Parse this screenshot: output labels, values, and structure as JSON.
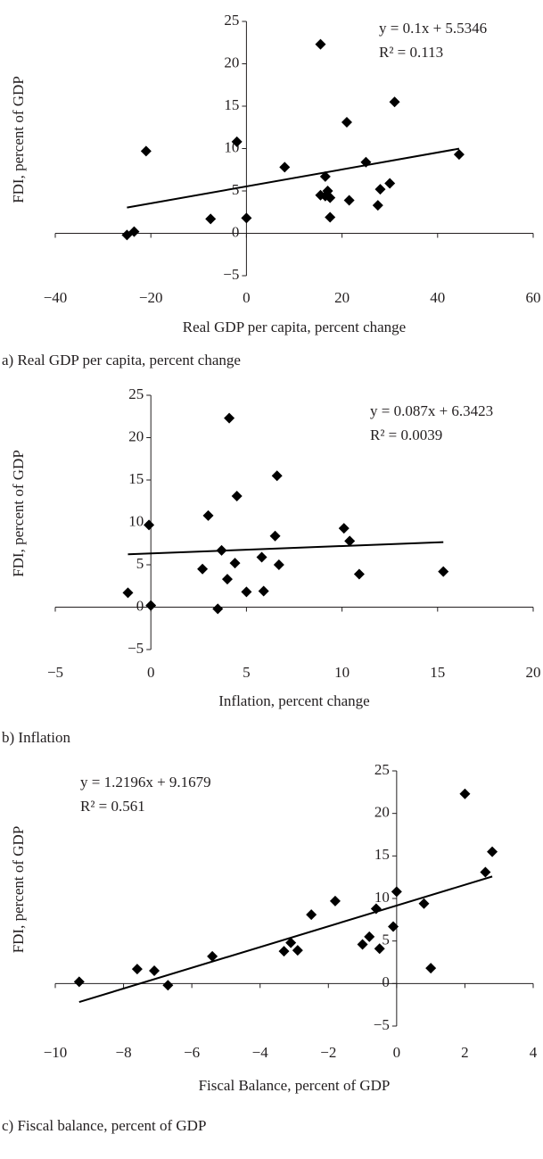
{
  "chart_data": [
    {
      "type": "scatter",
      "color": "#000000",
      "x_label": "Real GDP per capita, percent change",
      "y_label": "FDI, percent of GDP",
      "x": [
        -25,
        -23.5,
        -21,
        -7.5,
        -2,
        0,
        8,
        15.5,
        15.5,
        16.5,
        16.5,
        17,
        17.5,
        17.5,
        21,
        21.5,
        25,
        27.5,
        28,
        30,
        31,
        44.5
      ],
      "y": [
        -0.2,
        0.2,
        9.7,
        1.7,
        10.8,
        1.8,
        7.8,
        22.3,
        4.5,
        6.7,
        4.4,
        5,
        4.2,
        1.9,
        13.1,
        3.9,
        8.4,
        3.3,
        5.2,
        5.9,
        15.5,
        9.3
      ],
      "xlim": [
        -40,
        60
      ],
      "ylim": [
        -5,
        25
      ],
      "xticks": [
        {
          "value": -40,
          "label": "−40"
        },
        {
          "value": -20,
          "label": "−20"
        },
        0,
        20,
        40,
        60
      ],
      "yticks": [
        {
          "value": -5,
          "label": "−5"
        },
        0,
        5,
        10,
        15,
        20,
        25
      ],
      "trendline": {
        "slope": 0.1,
        "intercept": 5.5346
      },
      "annotations": [
        "y = 0.1x + 5.5346",
        "R² = 0.113"
      ],
      "caption": "a) Real GDP per capita, percent change"
    },
    {
      "type": "scatter",
      "color": "#000000",
      "x_label": "Inflation, percent change",
      "y_label": "FDI, percent of GDP",
      "x": [
        -1.2,
        -0.1,
        0,
        2.7,
        3,
        3.5,
        3.7,
        4,
        4.1,
        4.4,
        4.5,
        5,
        5.8,
        5.9,
        6.5,
        6.6,
        6.7,
        10.1,
        10.4,
        10.9,
        15.3
      ],
      "y": [
        1.7,
        9.7,
        0.2,
        4.5,
        10.8,
        -0.2,
        6.7,
        3.3,
        22.3,
        5.2,
        13.1,
        1.8,
        5.9,
        1.9,
        8.4,
        15.5,
        5,
        9.3,
        7.8,
        3.9,
        4.2
      ],
      "xlim": [
        -5,
        20
      ],
      "ylim": [
        -5,
        25
      ],
      "xticks": [
        {
          "value": -5,
          "label": "−5"
        },
        0,
        5,
        10,
        15,
        20
      ],
      "yticks": [
        {
          "value": -5,
          "label": "−5"
        },
        0,
        5,
        10,
        15,
        20,
        25
      ],
      "trendline": {
        "slope": 0.087,
        "intercept": 6.3423
      },
      "annotations": [
        "y = 0.087x + 6.3423",
        "R² = 0.0039"
      ],
      "caption": "b) Inflation"
    },
    {
      "type": "scatter",
      "color": "#000000",
      "x_label": "Fiscal Balance, percent of GDP",
      "y_label": "FDI, percent of GDP",
      "x": [
        -9.3,
        -7.6,
        -7.1,
        -6.7,
        -5.4,
        -3.3,
        -3.1,
        -2.9,
        -2.5,
        -1.8,
        -1,
        -0.8,
        -0.6,
        -0.5,
        -0.1,
        0,
        0.8,
        1,
        2,
        2.6,
        2.8
      ],
      "y": [
        0.2,
        1.7,
        1.5,
        -0.2,
        3.2,
        3.8,
        4.8,
        3.9,
        8.1,
        9.7,
        4.6,
        5.5,
        8.8,
        4.1,
        6.7,
        10.8,
        9.4,
        1.8,
        22.3,
        13.1,
        15.5
      ],
      "xlim": [
        -10,
        4
      ],
      "ylim": [
        -5,
        25
      ],
      "xticks": [
        {
          "value": -10,
          "label": "−10"
        },
        {
          "value": -8,
          "label": "−8"
        },
        {
          "value": -6,
          "label": "−6"
        },
        {
          "value": -4,
          "label": "−4"
        },
        {
          "value": -2,
          "label": "−2"
        },
        0,
        2,
        4
      ],
      "yticks": [
        {
          "value": -5,
          "label": "−5"
        },
        0,
        5,
        10,
        15,
        20,
        25
      ],
      "trendline": {
        "slope": 1.2196,
        "intercept": 9.1679
      },
      "annotations": [
        "y = 1.2196x + 9.1679",
        "R² = 0.561"
      ],
      "caption": "c) Fiscal balance, percent of GDP"
    }
  ]
}
